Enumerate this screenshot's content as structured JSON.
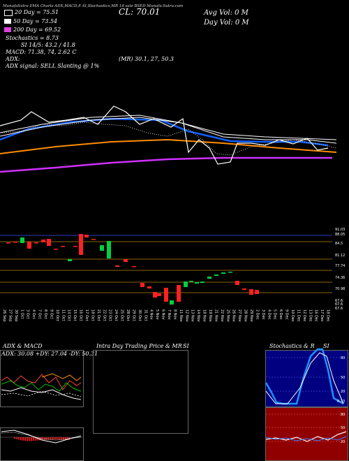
{
  "header": {
    "line": "MunafaSutra EMA Charts ADX,MACD,E SI,Stochastics,MR 14 sale BSED Munafa-Sutra.com",
    "cl_label": "CL:",
    "cl_value": "70.01",
    "avg_vol": "Avg Vol: 0  M",
    "day_vol": "Day Vol: 0  M"
  },
  "legend": [
    {
      "label": "20  Day = 75.51",
      "color": "#000000",
      "border": "#ffffff"
    },
    {
      "label": "50  Day = 73.54",
      "color": "#ffffff",
      "border": "#ffffff"
    },
    {
      "label": "200  Day = 69.52",
      "color": "#e040e0",
      "border": "#e040e0"
    }
  ],
  "indicators": {
    "stochastics": "Stochastics = 8.73",
    "si": "SI 14/5: 43.2  / 41.8",
    "macd": "MACD: 71.38,  74,  2.62  C",
    "adx": "ADX:",
    "mr": "(MR) 30.1,  27,  50.3",
    "signal": "ADX  signal: SELL  Slanting @ 1%"
  },
  "price_axis": {
    "labels": [
      "91.03",
      "88.05",
      "84.5",
      "81.12",
      "77.74",
      "74.36",
      "70.98",
      "67.6",
      "67.6",
      "67.6"
    ]
  },
  "dates": [
    "26 Sep",
    "27 Sep",
    "30 Sep",
    "1 Oct",
    "3 Oct",
    "4 Oct",
    "7 Oct",
    "8 Oct",
    "9 Oct",
    "10 Oct",
    "11 Oct",
    "14 Oct",
    "15 Oct",
    "16 Oct",
    "17 Oct",
    "18 Oct",
    "21 Oct",
    "22 Oct",
    "23 Oct",
    "24 Oct",
    "25 Oct",
    "28 Oct",
    "29 Oct",
    "30 Oct",
    "31 Oct",
    "4 Nov",
    "5 Nov",
    "6 Nov",
    "7 Nov",
    "8 Nov",
    "11 Nov",
    "12 Nov",
    "13 Nov",
    "14 Nov",
    "18 Nov",
    "19 Nov",
    "21 Nov",
    "22 Nov",
    "25 Nov",
    "26 Nov",
    "27 Nov",
    "28 Nov",
    "29 Nov",
    "2 Dec",
    "3 Dec",
    "4 Dec",
    "5 Dec",
    "6 Dec",
    "9 Dec",
    "10 Dec",
    "11 Dec",
    "12 Dec",
    "13 Dec",
    "16 Dec",
    "17 Dec",
    "18 Dec"
  ],
  "panels": {
    "adx_title": "ADX  & MACD",
    "adx_values": "ADX: 30.08  +DY: 27.04  -DY: 50.31",
    "intraday_title": "Intra  Day Trading Price  & MR",
    "intraday_si": "SI",
    "stoch_title": "Stochastics & R",
    "stoch_si": "SI",
    "stoch_ticks": [
      "80",
      "50",
      "20"
    ],
    "si_ticks": [
      "80",
      "50",
      "20"
    ],
    "stoch_value": "8.73"
  },
  "colors": {
    "ema20": "#1060ff",
    "ema50": "#ffffff",
    "ema100": "#ff8c00",
    "ema200": "#d030ff",
    "up": "#00d040",
    "down": "#ff2020",
    "stoch_bg": "#000080",
    "si_bg": "#900000"
  }
}
